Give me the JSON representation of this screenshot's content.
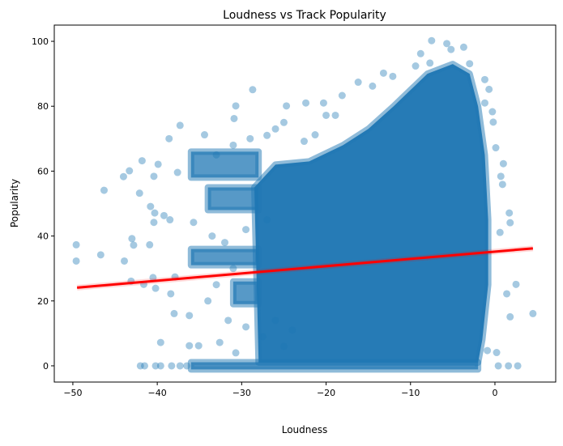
{
  "chart_data": {
    "type": "scatter",
    "title": "Loudness vs Track Popularity",
    "xlabel": "Loudness",
    "ylabel": "Popularity",
    "xlim": [
      -52.2,
      7.2
    ],
    "ylim": [
      -5,
      105
    ],
    "x_ticks": [
      -50,
      -40,
      -30,
      -20,
      -10,
      0
    ],
    "x_tick_labels": [
      "−50",
      "−40",
      "−30",
      "−20",
      "−10",
      "0"
    ],
    "y_ticks": [
      0,
      20,
      40,
      60,
      80,
      100
    ],
    "y_tick_labels": [
      "0",
      "20",
      "40",
      "60",
      "80",
      "100"
    ],
    "grid": false,
    "point_color": "#1f77b4",
    "point_alpha": 0.4,
    "line_color": "#ff0000",
    "regression_line": {
      "x": [
        -49.5,
        4.5
      ],
      "y": [
        24.1,
        36.2
      ]
    },
    "dense_regions": [
      [
        [
          -28,
          2
        ],
        [
          -28.5,
          55
        ],
        [
          -26,
          62
        ],
        [
          -22,
          63
        ],
        [
          -18,
          68
        ],
        [
          -15,
          73
        ],
        [
          -12,
          80
        ],
        [
          -10,
          85
        ],
        [
          -8,
          90
        ],
        [
          -5,
          93
        ],
        [
          -3,
          90
        ],
        [
          -2,
          80
        ],
        [
          -1.2,
          65
        ],
        [
          -0.8,
          45
        ],
        [
          -0.8,
          25
        ],
        [
          -1.5,
          8
        ],
        [
          -2,
          1
        ],
        [
          -28,
          1
        ]
      ],
      [
        [
          -36,
          58
        ],
        [
          -28,
          58
        ],
        [
          -28,
          66
        ],
        [
          -36,
          66
        ]
      ],
      [
        [
          -36,
          31
        ],
        [
          -28,
          31
        ],
        [
          -28,
          36
        ],
        [
          -36,
          36
        ]
      ],
      [
        [
          -31,
          19
        ],
        [
          -28,
          19
        ],
        [
          -28,
          26
        ],
        [
          -31,
          26
        ]
      ],
      [
        [
          -34,
          48
        ],
        [
          -28,
          48
        ],
        [
          -28,
          55
        ],
        [
          -34,
          55
        ]
      ],
      [
        [
          -36,
          -1.1
        ],
        [
          -2,
          -1.1
        ],
        [
          -2,
          1.1
        ],
        [
          -36,
          1.1
        ]
      ]
    ],
    "points": [
      [
        -49.6,
        37.3
      ],
      [
        -49.6,
        32.3
      ],
      [
        -46.7,
        34.2
      ],
      [
        -46.3,
        54.1
      ],
      [
        -44.0,
        58.3
      ],
      [
        -43.3,
        60.1
      ],
      [
        -41.8,
        63.2
      ],
      [
        -42.1,
        53.2
      ],
      [
        -43.9,
        32.3
      ],
      [
        -43.1,
        26.1
      ],
      [
        -43.0,
        39.2
      ],
      [
        -42.8,
        37.2
      ],
      [
        -41.6,
        25.1
      ],
      [
        -40.9,
        37.3
      ],
      [
        -40.8,
        49.1
      ],
      [
        -40.4,
        58.4
      ],
      [
        -40.3,
        47.1
      ],
      [
        -40.4,
        44.2
      ],
      [
        -39.9,
        62.1
      ],
      [
        -39.6,
        7.2
      ],
      [
        -40.5,
        27.2
      ],
      [
        -40.2,
        23.9
      ],
      [
        -39.2,
        46.3
      ],
      [
        -38.6,
        70.0
      ],
      [
        -38.4,
        22.2
      ],
      [
        -38.0,
        16.1
      ],
      [
        -37.3,
        74.1
      ],
      [
        -37.6,
        59.6
      ],
      [
        -36.2,
        15.5
      ],
      [
        -35.1,
        6.2
      ],
      [
        -36.2,
        6.2
      ],
      [
        -34.4,
        71.2
      ],
      [
        -30.7,
        80.1
      ],
      [
        -28.7,
        85.1
      ],
      [
        -30.9,
        76.2
      ],
      [
        -30.7,
        4.0
      ],
      [
        -32.6,
        7.2
      ],
      [
        -37.9,
        27.4
      ],
      [
        -35.7,
        44.2
      ],
      [
        -38.5,
        45.0
      ],
      [
        -31.6,
        14.0
      ],
      [
        -42,
        0
      ],
      [
        -41.5,
        0
      ],
      [
        -40.2,
        0
      ],
      [
        -39.6,
        0
      ],
      [
        -38.3,
        0
      ],
      [
        -37.3,
        0
      ],
      [
        -36.5,
        0
      ],
      [
        -7.5,
        100.2
      ],
      [
        -5.7,
        99.3
      ],
      [
        -3.7,
        98.2
      ],
      [
        -5.2,
        97.5
      ],
      [
        -8.8,
        96.2
      ],
      [
        -9.4,
        92.4
      ],
      [
        -7.7,
        93.3
      ],
      [
        -3.0,
        93.1
      ],
      [
        -13.2,
        90.2
      ],
      [
        -12.1,
        89.2
      ],
      [
        -16.2,
        87.4
      ],
      [
        -14.5,
        86.2
      ],
      [
        -18.1,
        83.3
      ],
      [
        -22.4,
        81.0
      ],
      [
        -20.3,
        81.0
      ],
      [
        -20.0,
        77.2
      ],
      [
        -18.9,
        77.2
      ],
      [
        -1.2,
        88.2
      ],
      [
        -0.7,
        85.2
      ],
      [
        -1.2,
        81.0
      ],
      [
        -0.3,
        78.3
      ],
      [
        -0.2,
        75.1
      ],
      [
        0.1,
        67.2
      ],
      [
        1.0,
        62.3
      ],
      [
        0.7,
        58.4
      ],
      [
        0.9,
        55.9
      ],
      [
        1.7,
        47.1
      ],
      [
        1.8,
        44.1
      ],
      [
        0.6,
        41.1
      ],
      [
        2.5,
        25.1
      ],
      [
        1.4,
        22.2
      ],
      [
        1.8,
        15.1
      ],
      [
        4.5,
        16.1
      ],
      [
        0.2,
        4.1
      ],
      [
        -0.9,
        4.7
      ],
      [
        2.7,
        0
      ],
      [
        1.6,
        0
      ],
      [
        0.4,
        0
      ],
      [
        -24.7,
        80.1
      ],
      [
        -22.6,
        69.2
      ],
      [
        -21.3,
        71.2
      ],
      [
        -33,
        65
      ],
      [
        -31,
        68
      ],
      [
        -29,
        70
      ],
      [
        -27,
        71
      ],
      [
        -25,
        75
      ],
      [
        -26,
        73
      ],
      [
        -33.5,
        40
      ],
      [
        -32,
        38
      ],
      [
        -29.5,
        42
      ],
      [
        -27,
        45
      ],
      [
        -34,
        20
      ],
      [
        -33,
        25
      ],
      [
        -31,
        30
      ],
      [
        -29.5,
        12
      ],
      [
        -27.5,
        9
      ],
      [
        -26,
        14
      ],
      [
        -25,
        6
      ],
      [
        -24,
        11
      ]
    ]
  }
}
